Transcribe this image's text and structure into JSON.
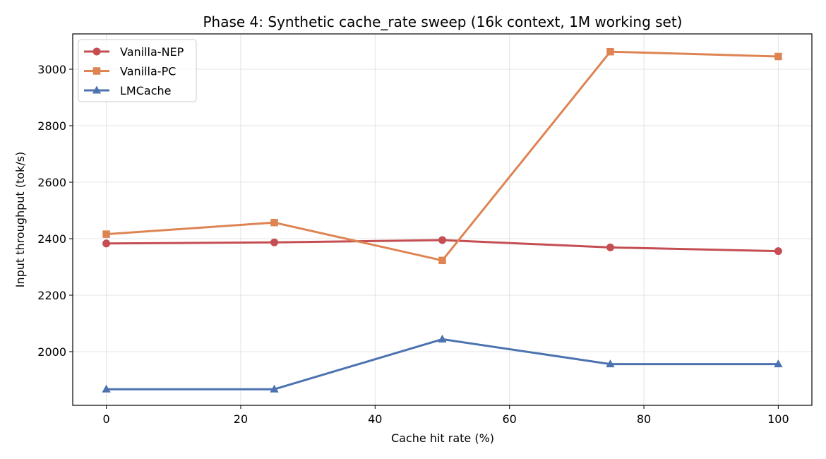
{
  "chart_data": {
    "type": "line",
    "title": "Phase 4: Synthetic cache_rate sweep (16k context, 1M working set)",
    "xlabel": "Cache hit rate (%)",
    "ylabel": "Input throughput (tok/s)",
    "x": [
      0,
      25,
      50,
      75,
      100
    ],
    "xlim": [
      -5,
      105
    ],
    "ylim": [
      1810,
      3125
    ],
    "xticks": [
      "0",
      "20",
      "40",
      "60",
      "80",
      "100"
    ],
    "yticks": [
      "2000",
      "2200",
      "2400",
      "2600",
      "2800",
      "3000"
    ],
    "grid": true,
    "legend_position": "top-left",
    "series": [
      {
        "name": "Vanilla-NEP",
        "color": "#c44e52",
        "marker": "circle",
        "values": [
          2383,
          2387,
          2395,
          2369,
          2356
        ]
      },
      {
        "name": "Vanilla-PC",
        "color": "#dd8452",
        "marker": "square",
        "values": [
          2416,
          2457,
          2323,
          3062,
          3045
        ]
      },
      {
        "name": "LMCache",
        "color": "#4c72b0",
        "marker": "triangle",
        "values": [
          1867,
          1867,
          2044,
          1956,
          1956
        ]
      }
    ]
  }
}
